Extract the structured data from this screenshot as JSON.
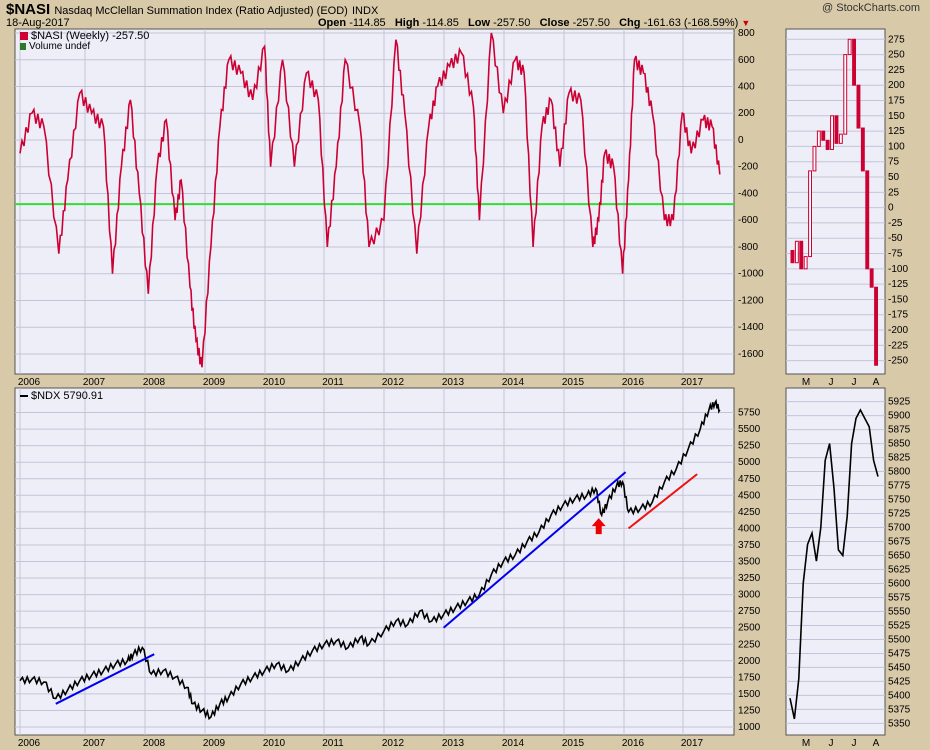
{
  "header": {
    "ticker": "$NASI",
    "description": "Nasdaq McClellan Summation Index (Ratio Adjusted) (EOD)",
    "exchange": "INDX",
    "date": "18-Aug-2017",
    "open_label": "Open",
    "open": "-114.85",
    "high_label": "High",
    "high": "-114.85",
    "low_label": "Low",
    "low": "-257.50",
    "close_label": "Close",
    "close": "-257.50",
    "chg_label": "Chg",
    "chg": "-161.63 (-168.59%)",
    "brand": "@ StockCharts.com"
  },
  "legends": {
    "nasi": "$NASI (Weekly) -257.50",
    "volume": "Volume undef",
    "ndx": "$NDX 5790.91"
  },
  "colors": {
    "nasi": "#cc0033",
    "ndx": "#000000",
    "signal_line": "#33dd33",
    "trend_blue": "#0000ee",
    "trend_red": "#ee1111",
    "arrow": "#ee0000",
    "panel_bg": "#eeeef8",
    "page_bg": "#d8c9a8"
  },
  "chart_data": [
    {
      "type": "line",
      "name": "$NASI weekly",
      "x_ticks": [
        "2006",
        "2007",
        "2008",
        "2009",
        "2010",
        "2011",
        "2012",
        "2013",
        "2014",
        "2015",
        "2016",
        "2017"
      ],
      "y_ticks": [
        "800",
        "600",
        "400",
        "200",
        "0",
        "-200",
        "-400",
        "-600",
        "-800",
        "-1000",
        "-1200",
        "-1400",
        "-1600"
      ],
      "ylim": [
        -1750,
        830
      ],
      "reference_line": -480,
      "x": [
        2005.9,
        2006.1,
        2006.3,
        2006.55,
        2006.7,
        2006.9,
        2007.1,
        2007.3,
        2007.45,
        2007.6,
        2007.75,
        2007.9,
        2008.05,
        2008.2,
        2008.35,
        2008.5,
        2008.6,
        2008.75,
        2008.85,
        2008.95,
        2009.1,
        2009.25,
        2009.4,
        2009.6,
        2009.8,
        2010.0,
        2010.1,
        2010.3,
        2010.5,
        2010.7,
        2010.9,
        2011.05,
        2011.2,
        2011.35,
        2011.6,
        2011.75,
        2012.0,
        2012.2,
        2012.35,
        2012.55,
        2012.75,
        2012.9,
        2013.1,
        2013.3,
        2013.5,
        2013.6,
        2013.8,
        2014.0,
        2014.2,
        2014.35,
        2014.5,
        2014.65,
        2014.8,
        2014.95,
        2015.1,
        2015.3,
        2015.5,
        2015.6,
        2015.7,
        2015.85,
        2016.0,
        2016.1,
        2016.2,
        2016.35,
        2016.5,
        2016.7,
        2016.85,
        2017.0,
        2017.15,
        2017.35,
        2017.5,
        2017.63
      ],
      "values": [
        -100,
        200,
        100,
        -850,
        -300,
        350,
        200,
        100,
        -1000,
        -200,
        300,
        -400,
        -1150,
        -200,
        150,
        -600,
        -300,
        -1100,
        -1500,
        -1700,
        -800,
        100,
        600,
        500,
        300,
        700,
        -200,
        600,
        -200,
        500,
        300,
        -800,
        -200,
        600,
        100,
        -800,
        -600,
        750,
        200,
        -850,
        100,
        400,
        550,
        650,
        250,
        -600,
        800,
        200,
        600,
        500,
        -800,
        100,
        300,
        -200,
        350,
        300,
        -800,
        -600,
        -100,
        -200,
        -1000,
        -300,
        600,
        500,
        200,
        -600,
        -600,
        200,
        -100,
        150,
        100,
        -257.5
      ]
    },
    {
      "type": "bar",
      "name": "$NASI daily",
      "x_ticks": [
        "M",
        "J",
        "J",
        "A"
      ],
      "y_ticks": [
        "275",
        "250",
        "225",
        "200",
        "175",
        "150",
        "125",
        "100",
        "75",
        "50",
        "25",
        "0",
        "-25",
        "-50",
        "-75",
        "-100",
        "-125",
        "-150",
        "-175",
        "-200",
        "-225",
        "-250"
      ],
      "ylim": [
        -262,
        282
      ],
      "values": [
        -90,
        -55,
        -100,
        -80,
        60,
        100,
        125,
        110,
        95,
        150,
        105,
        120,
        250,
        275,
        200,
        130,
        60,
        -100,
        -130,
        -257.5
      ]
    },
    {
      "type": "line",
      "name": "$NDX weekly",
      "x_ticks": [
        "2006",
        "2007",
        "2008",
        "2009",
        "2010",
        "2011",
        "2012",
        "2013",
        "2014",
        "2015",
        "2016",
        "2017"
      ],
      "y_ticks": [
        "5750",
        "5500",
        "5250",
        "5000",
        "4750",
        "4500",
        "4250",
        "4000",
        "3750",
        "3500",
        "3250",
        "3000",
        "2750",
        "2500",
        "2250",
        "2000",
        "1750",
        "1500",
        "1250",
        "1000"
      ],
      "ylim": [
        1000,
        6000
      ],
      "x": [
        2005.9,
        2006.1,
        2006.3,
        2006.5,
        2006.7,
        2006.9,
        2007.1,
        2007.3,
        2007.5,
        2007.7,
        2007.8,
        2007.95,
        2008.1,
        2008.3,
        2008.5,
        2008.7,
        2008.8,
        2008.95,
        2009.1,
        2009.25,
        2009.4,
        2009.6,
        2009.8,
        2010.0,
        2010.2,
        2010.4,
        2010.6,
        2010.8,
        2011.0,
        2011.2,
        2011.4,
        2011.6,
        2011.75,
        2012.0,
        2012.2,
        2012.4,
        2012.6,
        2012.8,
        2013.0,
        2013.2,
        2013.4,
        2013.6,
        2013.8,
        2014.0,
        2014.2,
        2014.4,
        2014.6,
        2014.8,
        2015.0,
        2015.2,
        2015.4,
        2015.55,
        2015.65,
        2015.75,
        2015.9,
        2016.0,
        2016.1,
        2016.3,
        2016.5,
        2016.7,
        2016.9,
        2017.1,
        2017.3,
        2017.45,
        2017.55,
        2017.63
      ],
      "values": [
        1700,
        1720,
        1680,
        1430,
        1560,
        1700,
        1780,
        1850,
        1950,
        2000,
        2100,
        2200,
        1800,
        1850,
        1750,
        1600,
        1350,
        1250,
        1150,
        1350,
        1450,
        1650,
        1750,
        1850,
        1950,
        1850,
        2000,
        2150,
        2250,
        2300,
        2200,
        2350,
        2250,
        2450,
        2600,
        2550,
        2750,
        2600,
        2700,
        2800,
        2900,
        3000,
        3300,
        3500,
        3600,
        3800,
        3950,
        4200,
        4350,
        4450,
        4500,
        4600,
        4200,
        4400,
        4650,
        4700,
        4250,
        4300,
        4400,
        4700,
        4900,
        5200,
        5500,
        5800,
        5900,
        5790.91
      ],
      "trend_lines": [
        {
          "color": "blue",
          "x1": 2006.5,
          "y1": 1350,
          "x2": 2008.15,
          "y2": 2100
        },
        {
          "color": "blue",
          "x1": 2013.0,
          "y1": 2500,
          "x2": 2016.05,
          "y2": 4850
        },
        {
          "color": "red",
          "x1": 2016.1,
          "y1": 4000,
          "x2": 2017.25,
          "y2": 4820
        }
      ],
      "marker": {
        "x": 2015.6,
        "y": 4020
      }
    },
    {
      "type": "line",
      "name": "$NDX daily",
      "x_ticks": [
        "M",
        "J",
        "J",
        "A"
      ],
      "y_ticks": [
        "5925",
        "5900",
        "5875",
        "5850",
        "5825",
        "5800",
        "5775",
        "5750",
        "5725",
        "5700",
        "5675",
        "5650",
        "5625",
        "5600",
        "5575",
        "5550",
        "5525",
        "5500",
        "5475",
        "5450",
        "5425",
        "5400",
        "5375",
        "5350"
      ],
      "ylim": [
        5340,
        5935
      ],
      "values": [
        5395,
        5358,
        5430,
        5600,
        5670,
        5690,
        5640,
        5700,
        5820,
        5850,
        5770,
        5660,
        5650,
        5720,
        5850,
        5895,
        5910,
        5895,
        5880,
        5820,
        5791
      ]
    }
  ]
}
